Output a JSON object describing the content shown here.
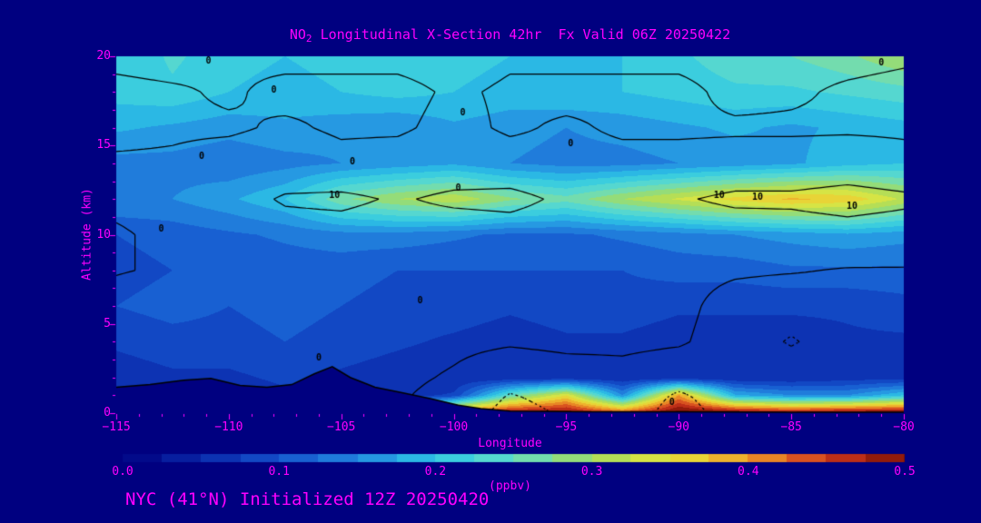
{
  "title": {
    "prefix": "NO",
    "sub": "2",
    "rest": " Longitudinal X-Section 42hr  Fx Valid 06Z 20250422"
  },
  "footer": "NYC (41°N) Initialized 12Z 20250420",
  "colors": {
    "background": "#000080",
    "text": "#FF00FF",
    "contour": "#000000"
  },
  "axes": {
    "x_label": "Longitude",
    "y_label": "Altitude (km)",
    "x_range": [
      -115,
      -80
    ],
    "y_range": [
      0,
      20
    ],
    "x_ticks": [
      -115,
      -110,
      -105,
      -100,
      -95,
      -90,
      -85,
      -80
    ],
    "x_tick_labels": [
      "−115",
      "−110",
      "−105",
      "−100",
      "−95",
      "−90",
      "−85",
      "−80"
    ],
    "y_ticks": [
      0,
      5,
      10,
      15,
      20
    ],
    "y_tick_labels": [
      "0",
      "5",
      "10",
      "15",
      "20"
    ]
  },
  "colorbar": {
    "units": "(ppbv)",
    "min": 0,
    "max": 0.5,
    "tick_labels": [
      "0.0",
      "0.1",
      "0.2",
      "0.3",
      "0.4",
      "0.5"
    ],
    "stops": [
      [
        0.0,
        "#000080"
      ],
      [
        0.05,
        "#0A28AA"
      ],
      [
        0.1,
        "#1553CD"
      ],
      [
        0.15,
        "#2389E0"
      ],
      [
        0.2,
        "#2EC8E6"
      ],
      [
        0.25,
        "#62DCC8"
      ],
      [
        0.3,
        "#A4DC5F"
      ],
      [
        0.35,
        "#E6E63C"
      ],
      [
        0.4,
        "#F0A028"
      ],
      [
        0.45,
        "#D2381E"
      ],
      [
        0.5,
        "#7D1205"
      ]
    ]
  },
  "chart_data": {
    "type": "heatmap",
    "quantity": "NO2 concentration (ppbv)",
    "grid_on": false,
    "x_lon": [
      -115,
      -112.5,
      -110,
      -107.5,
      -105,
      -102.5,
      -100,
      -97.5,
      -95,
      -92.5,
      -90,
      -87.5,
      -85,
      -82.5,
      -80
    ],
    "y_km": [
      0,
      1,
      2,
      4,
      6,
      8,
      10,
      12,
      14,
      16,
      18,
      20
    ],
    "values": [
      [
        0.08,
        0.08,
        0.08,
        0.08,
        0.08,
        0.15,
        0.45,
        0.5,
        0.5,
        0.45,
        0.52,
        0.52,
        0.5,
        0.52,
        0.52
      ],
      [
        0.06,
        0.06,
        0.06,
        0.07,
        0.06,
        0.06,
        0.08,
        0.25,
        0.35,
        0.15,
        0.4,
        0.18,
        0.15,
        0.15,
        0.2
      ],
      [
        0.06,
        0.07,
        0.07,
        0.08,
        0.07,
        0.06,
        0.05,
        0.05,
        0.05,
        0.05,
        0.05,
        0.05,
        0.05,
        0.06,
        0.06
      ],
      [
        0.08,
        0.09,
        0.09,
        0.1,
        0.09,
        0.08,
        0.07,
        0.06,
        0.07,
        0.07,
        0.06,
        0.06,
        0.06,
        0.07,
        0.07
      ],
      [
        0.1,
        0.11,
        0.1,
        0.11,
        0.1,
        0.09,
        0.09,
        0.08,
        0.09,
        0.09,
        0.08,
        0.08,
        0.08,
        0.08,
        0.09
      ],
      [
        0.09,
        0.1,
        0.1,
        0.11,
        0.11,
        0.1,
        0.1,
        0.1,
        0.1,
        0.1,
        0.11,
        0.11,
        0.12,
        0.12,
        0.12
      ],
      [
        0.1,
        0.11,
        0.12,
        0.13,
        0.14,
        0.14,
        0.13,
        0.12,
        0.12,
        0.13,
        0.14,
        0.15,
        0.16,
        0.17,
        0.16
      ],
      [
        0.15,
        0.15,
        0.17,
        0.2,
        0.27,
        0.3,
        0.32,
        0.28,
        0.26,
        0.3,
        0.33,
        0.36,
        0.38,
        0.37,
        0.32
      ],
      [
        0.14,
        0.14,
        0.13,
        0.14,
        0.15,
        0.16,
        0.17,
        0.15,
        0.14,
        0.14,
        0.15,
        0.16,
        0.17,
        0.19,
        0.2
      ],
      [
        0.18,
        0.17,
        0.16,
        0.17,
        0.16,
        0.15,
        0.17,
        0.16,
        0.15,
        0.16,
        0.17,
        0.18,
        0.17,
        0.18,
        0.19
      ],
      [
        0.21,
        0.22,
        0.2,
        0.19,
        0.2,
        0.21,
        0.2,
        0.19,
        0.2,
        0.2,
        0.21,
        0.22,
        0.22,
        0.23,
        0.24
      ],
      [
        0.2,
        0.23,
        0.21,
        0.2,
        0.21,
        0.22,
        0.21,
        0.2,
        0.19,
        0.2,
        0.22,
        0.24,
        0.25,
        0.27,
        0.3
      ]
    ],
    "terrain": {
      "lons": [
        -115,
        -113.5,
        -112,
        -110.8,
        -109.5,
        -108.3,
        -107.2,
        -106.2,
        -105.4,
        -104.6,
        -103.5,
        -102.3,
        -101,
        -99.8,
        -98.8,
        -97.5,
        -96,
        -94,
        -92,
        -90,
        -87.5,
        -85,
        -82.5,
        -80
      ],
      "elev_km": [
        1.45,
        1.6,
        1.85,
        1.95,
        1.55,
        1.45,
        1.6,
        2.2,
        2.6,
        2.0,
        1.45,
        1.15,
        0.8,
        0.45,
        0.25,
        0.12,
        0.1,
        0.08,
        0.08,
        0.07,
        0.06,
        0.05,
        0.05,
        0.05
      ]
    },
    "contour_overlay": {
      "levels_solid": [
        0,
        10
      ],
      "levels_dotted": [
        -10
      ],
      "values": [
        [
          1,
          1,
          1,
          2,
          3,
          1,
          -5,
          -13,
          -9,
          -6,
          -13,
          -7,
          -4,
          -3,
          -2
        ],
        [
          1,
          1,
          1,
          3,
          4,
          1,
          -3,
          -10.5,
          -7,
          -5,
          -11,
          -6,
          -3,
          -2,
          -1
        ],
        [
          1,
          2,
          2,
          4,
          5,
          2,
          -1,
          -6,
          -4,
          -3,
          -6,
          -5,
          -3,
          -2,
          -1
        ],
        [
          3,
          5,
          4,
          6,
          6,
          4,
          2,
          1,
          2,
          2,
          1,
          -4,
          -11,
          -4,
          -2
        ],
        [
          3,
          5,
          4,
          6,
          5,
          4,
          3,
          2,
          3,
          3,
          2,
          -3,
          -5,
          -3,
          -1
        ],
        [
          -0.5,
          1,
          2,
          4,
          4,
          3,
          2,
          2,
          2,
          2,
          2,
          1,
          0.5,
          -0.5,
          -0.5
        ],
        [
          -1,
          2,
          4,
          6,
          6,
          5,
          4,
          5,
          4,
          3,
          3,
          4,
          5,
          6,
          5
        ],
        [
          2,
          3,
          6,
          11,
          12,
          9,
          12,
          13,
          8,
          6,
          9,
          12,
          12,
          14,
          12
        ],
        [
          1,
          1,
          3,
          4,
          2,
          3,
          4,
          3,
          2,
          2,
          2,
          3,
          3,
          4,
          2
        ],
        [
          -2,
          -1,
          -1,
          1,
          -1,
          -1,
          2,
          -1,
          1,
          -1,
          -1,
          -1,
          -1,
          -1,
          -1
        ],
        [
          -2,
          -1,
          1,
          -2,
          -1,
          -2,
          1,
          -1,
          -2,
          -1,
          -2,
          2,
          1,
          -1,
          -2
        ],
        [
          2,
          3,
          1,
          2,
          1,
          2,
          3,
          1,
          2,
          1,
          2,
          3,
          2,
          2,
          1
        ]
      ]
    },
    "contour_labels": [
      {
        "text": "0",
        "lon": -110.9,
        "km": 19.7
      },
      {
        "text": "0",
        "lon": -81.0,
        "km": 19.6
      },
      {
        "text": "0",
        "lon": -108.0,
        "km": 18.1
      },
      {
        "text": "0",
        "lon": -99.6,
        "km": 16.8
      },
      {
        "text": "0",
        "lon": -94.8,
        "km": 15.1
      },
      {
        "text": "0",
        "lon": -111.2,
        "km": 14.4
      },
      {
        "text": "0",
        "lon": -104.5,
        "km": 14.1
      },
      {
        "text": "10",
        "lon": -105.3,
        "km": 12.2
      },
      {
        "text": "0",
        "lon": -99.8,
        "km": 12.6
      },
      {
        "text": "10",
        "lon": -88.2,
        "km": 12.2
      },
      {
        "text": "10",
        "lon": -86.5,
        "km": 12.1
      },
      {
        "text": "10",
        "lon": -82.3,
        "km": 11.6
      },
      {
        "text": "0",
        "lon": -113.0,
        "km": 10.3
      },
      {
        "text": "0",
        "lon": -101.5,
        "km": 6.3
      },
      {
        "text": "0",
        "lon": -106.0,
        "km": 3.1
      },
      {
        "text": "0",
        "lon": -90.3,
        "km": 0.6
      }
    ]
  }
}
